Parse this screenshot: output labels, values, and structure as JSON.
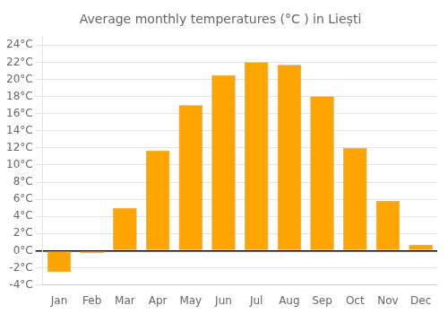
{
  "chart_data": {
    "type": "bar",
    "title": "Average monthly temperatures (°C ) in Liești",
    "categories": [
      "Jan",
      "Feb",
      "Mar",
      "Apr",
      "May",
      "Jun",
      "Jul",
      "Aug",
      "Sep",
      "Oct",
      "Nov",
      "Dec"
    ],
    "values": [
      -2.5,
      -0.3,
      5.0,
      11.7,
      17.0,
      20.5,
      22.0,
      21.7,
      18.0,
      12.0,
      5.8,
      0.7
    ],
    "color": "#FFA500",
    "ylim": [
      -4,
      25
    ],
    "yticks": [
      {
        "value": -4,
        "label": "-4°C"
      },
      {
        "value": -2,
        "label": "-2°C"
      },
      {
        "value": 0,
        "label": "0°C"
      },
      {
        "value": 2,
        "label": "2°C"
      },
      {
        "value": 4,
        "label": "4°C"
      },
      {
        "value": 6,
        "label": "6°C"
      },
      {
        "value": 8,
        "label": "8°C"
      },
      {
        "value": 10,
        "label": "10°C"
      },
      {
        "value": 12,
        "label": "12°C"
      },
      {
        "value": 14,
        "label": "14°C"
      },
      {
        "value": 16,
        "label": "16°C"
      },
      {
        "value": 18,
        "label": "18°C"
      },
      {
        "value": 20,
        "label": "20°C"
      },
      {
        "value": 22,
        "label": "22°C"
      },
      {
        "value": 24,
        "label": "24°C"
      }
    ],
    "grid": true
  }
}
